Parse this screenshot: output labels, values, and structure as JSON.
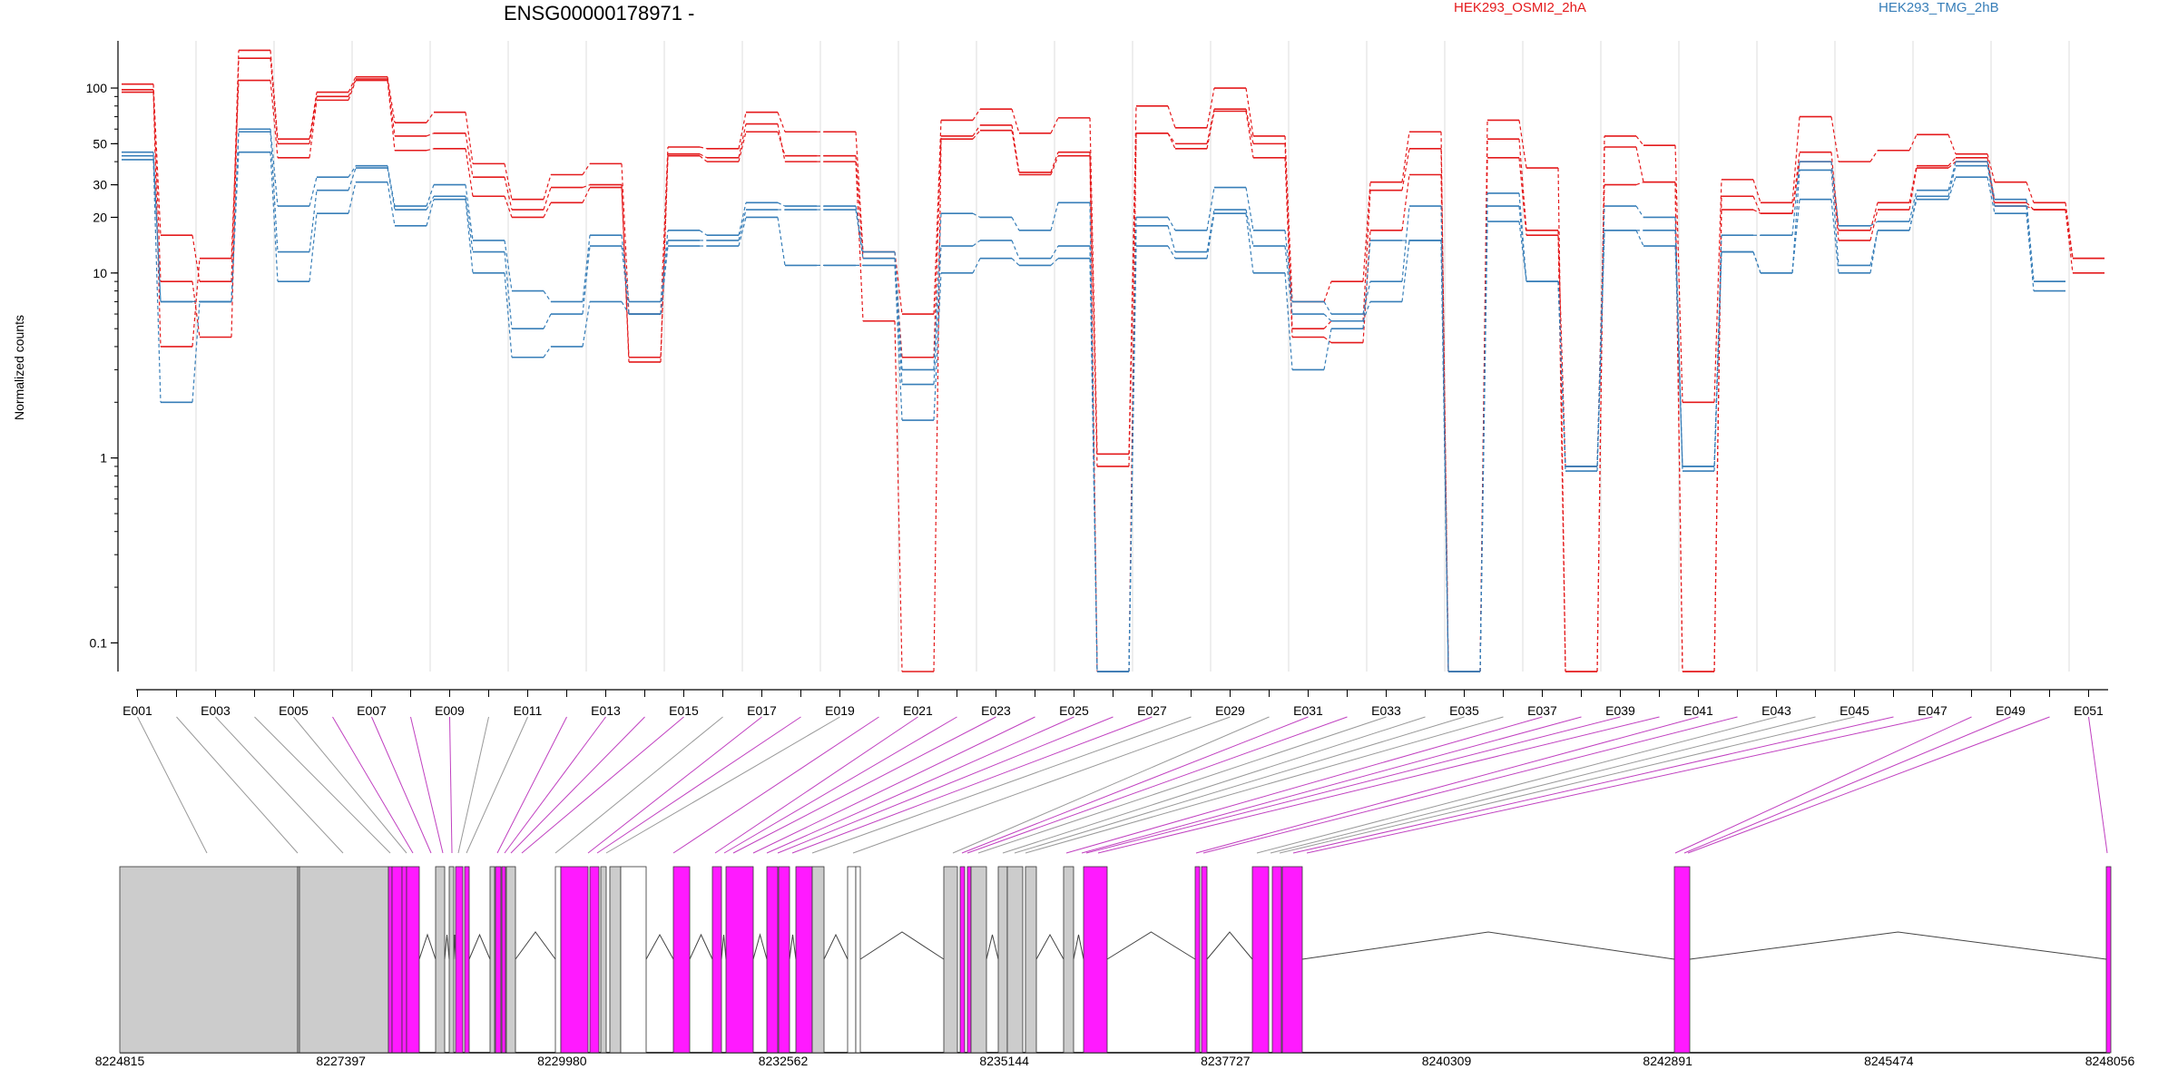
{
  "chart_data": {
    "type": "line",
    "title": "ENSG00000178971 -",
    "ylabel": "Normalized counts",
    "yscale": "log",
    "ylim": [
      0.07,
      180
    ],
    "yticks": [
      0.1,
      1,
      10,
      20,
      30,
      50,
      100
    ],
    "ytick_labels": [
      "0.1",
      "1",
      "10",
      "20",
      "30",
      "50",
      "100"
    ],
    "x_tick_labels": [
      "E001",
      "E003",
      "E005",
      "E007",
      "E009",
      "E011",
      "E013",
      "E015",
      "E017",
      "E019",
      "E021",
      "E023",
      "E025",
      "E027",
      "E029",
      "E031",
      "E033",
      "E035",
      "E037",
      "E039",
      "E041",
      "E043",
      "E045",
      "E047",
      "E049",
      "E051"
    ],
    "series": [
      {
        "name": "HEK293_OSMI2_2hA",
        "group": "HEK293_OSMI2_2hA",
        "color": "#e41a1c",
        "values": [
          105,
          16,
          9,
          160,
          53,
          95,
          115,
          65,
          74,
          39,
          25,
          34,
          39,
          6,
          48,
          47,
          74,
          58,
          58,
          13,
          6,
          67,
          77,
          57,
          69,
          1.05,
          80,
          61,
          100,
          55,
          7,
          9,
          31,
          58,
          0.07,
          67,
          37,
          0.07,
          55,
          49,
          2,
          32,
          24,
          70,
          40,
          46,
          56,
          44,
          31,
          24,
          12
        ]
      },
      {
        "name": "HEK293_OSMI2_2hA",
        "group": "HEK293_OSMI2_2hA",
        "color": "#e41a1c",
        "values": [
          98,
          9,
          4.5,
          145,
          50,
          90,
          112,
          55,
          57,
          33,
          22,
          29,
          30,
          3.5,
          43,
          40,
          58,
          43,
          43,
          12,
          3.5,
          55,
          63,
          35,
          45,
          0.9,
          57,
          50,
          77,
          50,
          5,
          5.5,
          28,
          47,
          0.07,
          53,
          17,
          0.07,
          48,
          31,
          0.07,
          26,
          21,
          45,
          17,
          24,
          38,
          42,
          24,
          22,
          10
        ]
      },
      {
        "name": "HEK293_OSMI2_2hA",
        "group": "HEK293_OSMI2_2hA",
        "color": "#e41a1c",
        "values": [
          95,
          4,
          12,
          110,
          42,
          86,
          110,
          46,
          47,
          26,
          20,
          24,
          29,
          3.3,
          44,
          42,
          64,
          40,
          40,
          5.5,
          0.07,
          53,
          59,
          34,
          43,
          0.07,
          57,
          47,
          75,
          42,
          4.5,
          4.2,
          17,
          34,
          0.07,
          42,
          16,
          0.9,
          30,
          31,
          0.07,
          22,
          21,
          40,
          15,
          22,
          37,
          40,
          23,
          22,
          12
        ]
      },
      {
        "name": "HEK293_TMG_2hB",
        "group": "HEK293_TMG_2hB",
        "color": "#377eb8",
        "values": [
          45,
          7,
          7,
          60,
          23,
          33,
          38,
          23,
          30,
          15,
          8,
          7,
          16,
          7,
          17,
          16,
          24,
          23,
          23,
          13,
          3,
          21,
          20,
          17,
          24,
          0.07,
          20,
          17,
          29,
          17,
          7,
          6,
          9,
          23,
          0.07,
          27,
          9,
          0.9,
          23,
          20,
          0.9,
          16,
          16,
          40,
          18,
          19,
          28,
          40,
          25,
          9
        ]
      },
      {
        "name": "HEK293_TMG_2hB",
        "group": "HEK293_TMG_2hB",
        "color": "#377eb8",
        "values": [
          43,
          7,
          7,
          58,
          13,
          28,
          37,
          22,
          26,
          13,
          5,
          6,
          14,
          6,
          15,
          15,
          22,
          22,
          22,
          12,
          2.5,
          14,
          15,
          12,
          14,
          0.07,
          18,
          13,
          22,
          14,
          6,
          5.5,
          7,
          15,
          0.07,
          23,
          9,
          0.85,
          17,
          17,
          0.85,
          13,
          10,
          36,
          11,
          17,
          26,
          38,
          23,
          9
        ]
      },
      {
        "name": "HEK293_TMG_2hB",
        "group": "HEK293_TMG_2hB",
        "color": "#377eb8",
        "values": [
          41,
          2,
          7,
          45,
          9,
          21,
          31,
          18,
          25,
          10,
          3.5,
          4,
          7,
          6,
          14,
          14,
          20,
          11,
          11,
          11,
          1.6,
          10,
          12,
          11,
          12,
          0.07,
          14,
          12,
          21,
          10,
          3,
          5,
          15,
          15,
          0.07,
          19,
          9,
          0.9,
          17,
          14,
          0.9,
          13,
          10,
          25,
          10,
          17,
          25,
          33,
          21,
          8
        ]
      }
    ],
    "gene_model": {
      "coordinate_labels": [
        "8224815",
        "8227397",
        "8229980",
        "8232562",
        "8235144",
        "8237727",
        "8240309",
        "8242891",
        "8245474",
        "8248056"
      ]
    },
    "grid": true,
    "legend": "top"
  }
}
